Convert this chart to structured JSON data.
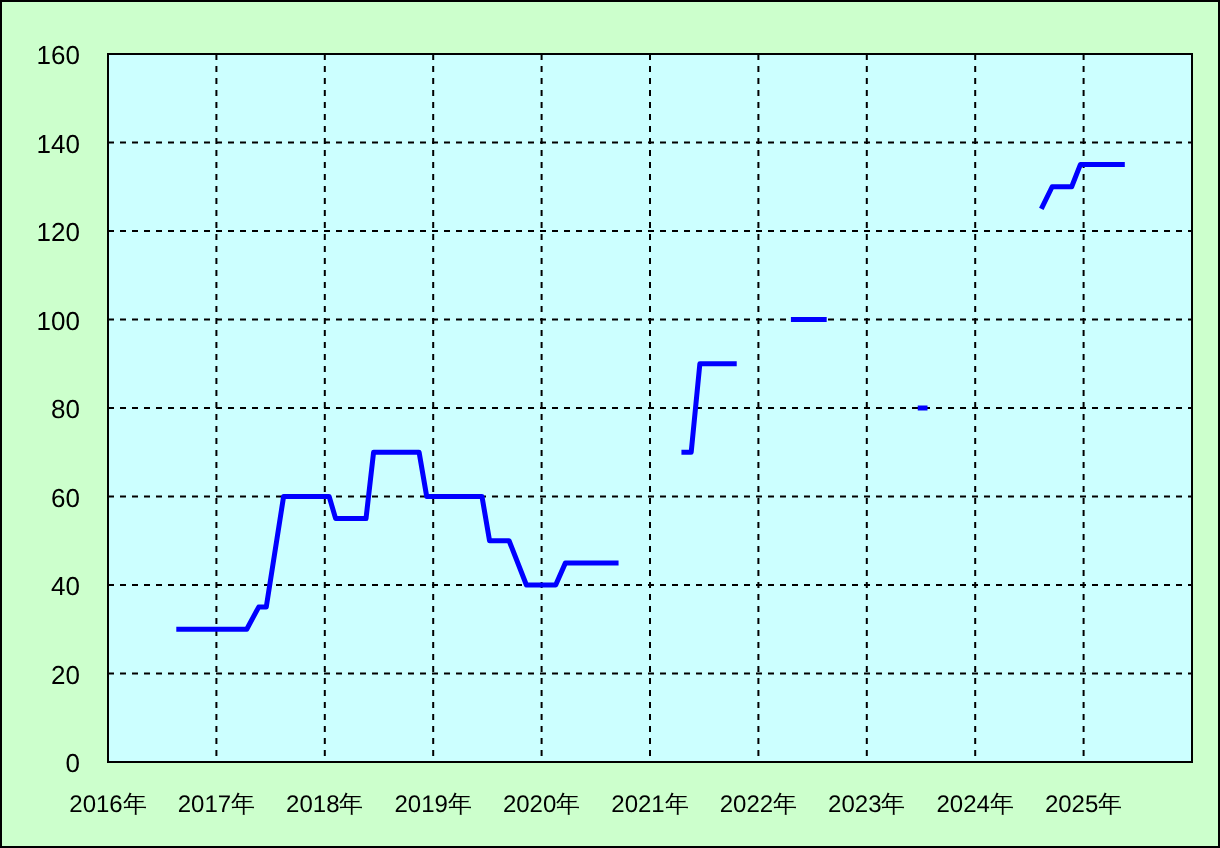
{
  "chart_data": {
    "type": "line",
    "series": [
      {
        "color": "#0000ff",
        "x": [
          2016.63,
          2017.28,
          2017.39,
          2017.46,
          2017.62,
          2018.04,
          2018.1,
          2018.38,
          2018.45,
          2018.87,
          2018.94,
          2019.45,
          2019.52,
          2019.7,
          2019.86,
          2020.13,
          2020.22,
          2020.71
        ],
        "values": [
          30,
          30,
          35,
          35,
          60,
          60,
          55,
          55,
          70,
          70,
          60,
          60,
          50,
          50,
          40,
          40,
          45,
          45
        ]
      },
      {
        "color": "#0000ff",
        "x": [
          2021.29,
          2021.38,
          2021.46,
          2021.8
        ],
        "values": [
          70,
          70,
          90,
          90
        ]
      },
      {
        "color": "#0000ff",
        "x": [
          2022.3,
          2022.63
        ],
        "values": [
          100,
          100
        ]
      },
      {
        "color": "#0000ff",
        "x": [
          2023.47,
          2023.56
        ],
        "values": [
          80,
          80
        ]
      },
      {
        "color": "#0000ff",
        "x": [
          2024.61,
          2024.71,
          2024.89,
          2024.97,
          2025.38
        ],
        "values": [
          125,
          130,
          130,
          135,
          135
        ]
      }
    ],
    "xlim": [
      2016,
      2026
    ],
    "ylim": [
      0,
      160
    ],
    "xticks": [
      {
        "value": 2016,
        "label": "2016年"
      },
      {
        "value": 2017,
        "label": "2017年"
      },
      {
        "value": 2018,
        "label": "2018年"
      },
      {
        "value": 2019,
        "label": "2019年"
      },
      {
        "value": 2020,
        "label": "2020年"
      },
      {
        "value": 2021,
        "label": "2021年"
      },
      {
        "value": 2022,
        "label": "2022年"
      },
      {
        "value": 2023,
        "label": "2023年"
      },
      {
        "value": 2024,
        "label": "2024年"
      },
      {
        "value": 2025,
        "label": "2025年"
      }
    ],
    "yticks": [
      0,
      20,
      40,
      60,
      80,
      100,
      120,
      140,
      160
    ],
    "grid": true,
    "marker": "none",
    "line_style": "solid"
  }
}
